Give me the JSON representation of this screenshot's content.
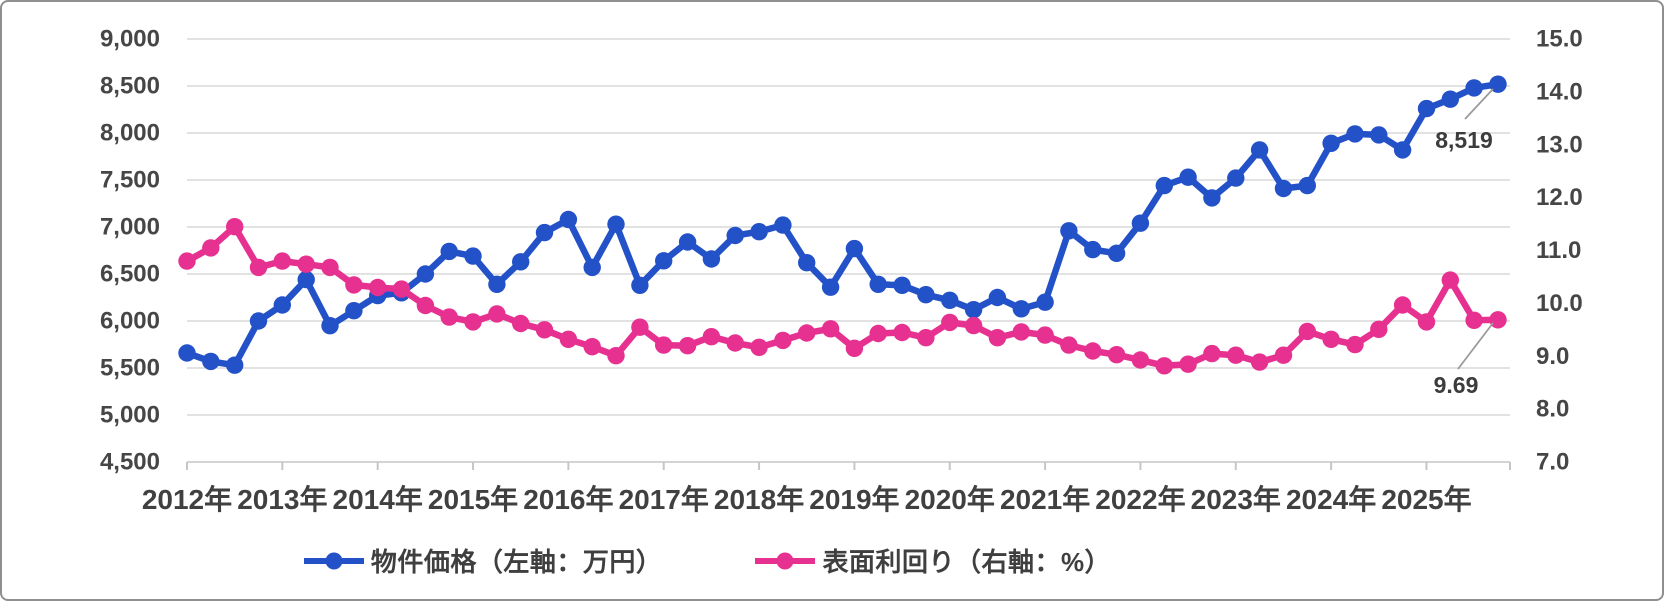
{
  "chart_data": {
    "type": "line",
    "title": "",
    "x_quarters": [
      "2012Q1",
      "2012Q2",
      "2012Q3",
      "2012Q4",
      "2013Q1",
      "2013Q2",
      "2013Q3",
      "2013Q4",
      "2014Q1",
      "2014Q2",
      "2014Q3",
      "2014Q4",
      "2015Q1",
      "2015Q2",
      "2015Q3",
      "2015Q4",
      "2016Q1",
      "2016Q2",
      "2016Q3",
      "2016Q4",
      "2017Q1",
      "2017Q2",
      "2017Q3",
      "2017Q4",
      "2018Q1",
      "2018Q2",
      "2018Q3",
      "2018Q4",
      "2019Q1",
      "2019Q2",
      "2019Q3",
      "2019Q4",
      "2020Q1",
      "2020Q2",
      "2020Q3",
      "2020Q4",
      "2021Q1",
      "2021Q2",
      "2021Q3",
      "2021Q4",
      "2022Q1",
      "2022Q2",
      "2022Q3",
      "2022Q4",
      "2023Q1",
      "2023Q2",
      "2023Q3",
      "2023Q4",
      "2024Q1",
      "2024Q2",
      "2024Q3",
      "2024Q4",
      "2025Q1",
      "2025Q2",
      "2025Q3",
      "2025Q4"
    ],
    "x_year_ticks": [
      "2012年",
      "2013年",
      "2014年",
      "2015年",
      "2016年",
      "2017年",
      "2018年",
      "2019年",
      "2020年",
      "2021年",
      "2022年",
      "2023年",
      "2024年",
      "2025年"
    ],
    "series": [
      {
        "name": "物件価格（左軸：万円）",
        "axis": "left",
        "color": "#2351c8",
        "values": [
          5660,
          5570,
          5530,
          6000,
          6170,
          6440,
          5950,
          6110,
          6270,
          6300,
          6500,
          6740,
          6690,
          6390,
          6630,
          6940,
          7080,
          6570,
          7030,
          6380,
          6640,
          6840,
          6660,
          6910,
          6950,
          7020,
          6620,
          6360,
          6770,
          6390,
          6380,
          6280,
          6220,
          6120,
          6250,
          6130,
          6200,
          6960,
          6760,
          6720,
          7040,
          7440,
          7530,
          7310,
          7520,
          7820,
          7410,
          7440,
          7890,
          7990,
          7980,
          7820,
          8260,
          8360,
          8480,
          8519
        ]
      },
      {
        "name": "表面利回り（右軸：%）",
        "axis": "right",
        "color": "#e63190",
        "values": [
          10.8,
          11.05,
          11.45,
          10.68,
          10.8,
          10.74,
          10.68,
          10.35,
          10.3,
          10.27,
          9.96,
          9.74,
          9.65,
          9.8,
          9.62,
          9.5,
          9.32,
          9.18,
          9.01,
          9.55,
          9.21,
          9.2,
          9.37,
          9.25,
          9.17,
          9.3,
          9.44,
          9.52,
          9.15,
          9.43,
          9.45,
          9.35,
          9.64,
          9.58,
          9.35,
          9.46,
          9.4,
          9.21,
          9.1,
          9.03,
          8.93,
          8.82,
          8.85,
          9.05,
          9.02,
          8.89,
          9.02,
          9.47,
          9.32,
          9.22,
          9.51,
          9.97,
          9.65,
          10.44,
          9.68,
          9.69
        ]
      }
    ],
    "left_axis": {
      "min": 4500,
      "max": 9000,
      "step": 500,
      "tick_labels": [
        "9,000",
        "8,500",
        "8,000",
        "7,500",
        "7,000",
        "6,500",
        "6,000",
        "5,500",
        "5,000",
        "4,500"
      ]
    },
    "right_axis": {
      "min": 7.0,
      "max": 15.0,
      "step": 1.0,
      "tick_labels": [
        "15.0",
        "14.0",
        "13.0",
        "12.0",
        "11.0",
        "10.0",
        "9.0",
        "8.0",
        "7.0"
      ]
    },
    "end_labels": [
      {
        "series": 0,
        "text": "8,519"
      },
      {
        "series": 1,
        "text": "9.69"
      }
    ],
    "grid": true,
    "legend_position": "bottom"
  },
  "legend": {
    "items": [
      {
        "label": "物件価格（左軸：万円）",
        "color": "#2351c8"
      },
      {
        "label": "表面利回り（右軸：%）",
        "color": "#e63190"
      }
    ]
  },
  "colors": {
    "grid": "#d9d9d9",
    "axis_line": "#c6c6c6",
    "tick_mark": "#c6c6c6",
    "leader_line": "#9b9b9b",
    "border": "#8f8f8f",
    "background": "#ffffff"
  }
}
